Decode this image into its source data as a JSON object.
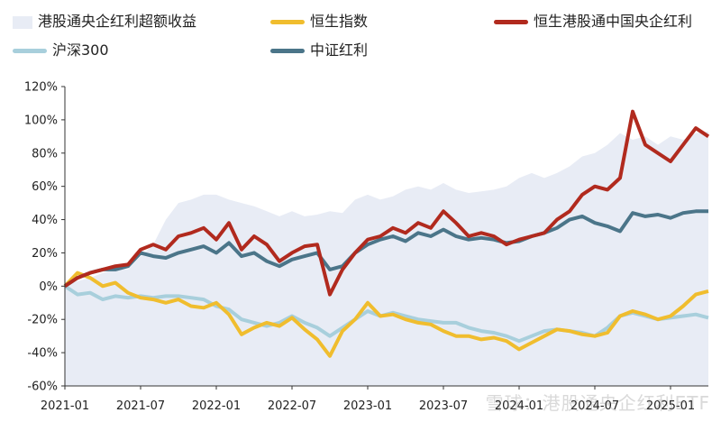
{
  "legend": [
    {
      "name": "港股通央企红利超额收益",
      "color": "#e8ecf5",
      "kind": "area"
    },
    {
      "name": "恒生指数",
      "color": "#f0bd2e",
      "kind": "line"
    },
    {
      "name": "恒生港股通中国央企红利",
      "color": "#b12a1e",
      "kind": "line"
    },
    {
      "name": "沪深300",
      "color": "#a8cfdc",
      "kind": "line"
    },
    {
      "name": "中证红利",
      "color": "#4b7589",
      "kind": "line"
    }
  ],
  "watermark": "雪球：港股通央企红利ETF",
  "chart_data": {
    "type": "line",
    "title": "",
    "xlabel": "",
    "ylabel": "",
    "x_ticks": [
      "2021-01",
      "2021-07",
      "2022-01",
      "2022-07",
      "2023-01",
      "2023-07",
      "2024-01",
      "2024-07",
      "2025-01"
    ],
    "y_ticks": [
      "120%",
      "100%",
      "80%",
      "60%",
      "40%",
      "20%",
      "0%",
      "-20%",
      "-40%",
      "-60%"
    ],
    "ylim": [
      -60,
      120
    ],
    "x_range": [
      "2021-01",
      "2025-04"
    ],
    "grid": false,
    "legend_position": "top",
    "x": [
      "2021-01",
      "2021-02",
      "2021-03",
      "2021-04",
      "2021-05",
      "2021-06",
      "2021-07",
      "2021-08",
      "2021-09",
      "2021-10",
      "2021-11",
      "2021-12",
      "2022-01",
      "2022-02",
      "2022-03",
      "2022-04",
      "2022-05",
      "2022-06",
      "2022-07",
      "2022-08",
      "2022-09",
      "2022-10",
      "2022-11",
      "2022-12",
      "2023-01",
      "2023-02",
      "2023-03",
      "2023-04",
      "2023-05",
      "2023-06",
      "2023-07",
      "2023-08",
      "2023-09",
      "2023-10",
      "2023-11",
      "2023-12",
      "2024-01",
      "2024-02",
      "2024-03",
      "2024-04",
      "2024-05",
      "2024-06",
      "2024-07",
      "2024-08",
      "2024-09",
      "2024-10",
      "2024-11",
      "2024-12",
      "2025-01",
      "2025-02",
      "2025-03",
      "2025-04"
    ],
    "series": [
      {
        "name": "港股通央企红利超额收益",
        "type": "area",
        "color": "#e8ecf5",
        "values": [
          0,
          3,
          5,
          8,
          10,
          10,
          18,
          25,
          40,
          50,
          52,
          55,
          55,
          52,
          50,
          48,
          45,
          42,
          45,
          42,
          43,
          45,
          44,
          52,
          55,
          52,
          54,
          58,
          60,
          58,
          62,
          58,
          56,
          57,
          58,
          60,
          65,
          68,
          65,
          68,
          72,
          78,
          80,
          85,
          92,
          88,
          90,
          85,
          90,
          88,
          92,
          93
        ]
      },
      {
        "name": "恒生指数",
        "color": "#f0bd2e",
        "values": [
          0,
          8,
          5,
          0,
          2,
          -4,
          -7,
          -8,
          -10,
          -8,
          -12,
          -13,
          -10,
          -17,
          -29,
          -25,
          -22,
          -24,
          -19,
          -26,
          -32,
          -42,
          -27,
          -20,
          -10,
          -18,
          -17,
          -20,
          -22,
          -23,
          -27,
          -30,
          -30,
          -32,
          -31,
          -33,
          -38,
          -34,
          -30,
          -26,
          -27,
          -29,
          -30,
          -28,
          -18,
          -15,
          -17,
          -20,
          -18,
          -12,
          -5,
          -3
        ]
      },
      {
        "name": "恒生港股通中国央企红利",
        "color": "#b12a1e",
        "values": [
          0,
          5,
          8,
          10,
          12,
          13,
          22,
          25,
          22,
          30,
          32,
          35,
          28,
          38,
          22,
          30,
          25,
          15,
          20,
          24,
          25,
          -5,
          10,
          20,
          28,
          30,
          35,
          32,
          38,
          35,
          45,
          38,
          30,
          32,
          30,
          25,
          28,
          30,
          32,
          40,
          45,
          55,
          60,
          58,
          65,
          105,
          85,
          80,
          75,
          85,
          95,
          90
        ]
      },
      {
        "name": "沪深300",
        "color": "#a8cfdc",
        "values": [
          0,
          -5,
          -4,
          -8,
          -6,
          -7,
          -6,
          -7,
          -6,
          -6,
          -7,
          -8,
          -12,
          -14,
          -20,
          -22,
          -24,
          -22,
          -18,
          -22,
          -25,
          -30,
          -25,
          -20,
          -15,
          -18,
          -16,
          -18,
          -20,
          -21,
          -22,
          -22,
          -25,
          -27,
          -28,
          -30,
          -33,
          -30,
          -27,
          -26,
          -27,
          -28,
          -30,
          -25,
          -18,
          -16,
          -18,
          -20,
          -19,
          -18,
          -17,
          -19
        ]
      },
      {
        "name": "中证红利",
        "color": "#4b7589",
        "values": [
          0,
          5,
          8,
          10,
          10,
          12,
          20,
          18,
          17,
          20,
          22,
          24,
          20,
          26,
          18,
          20,
          15,
          12,
          16,
          18,
          20,
          10,
          12,
          20,
          25,
          28,
          30,
          27,
          32,
          30,
          34,
          30,
          28,
          29,
          28,
          26,
          27,
          30,
          32,
          35,
          40,
          42,
          38,
          36,
          33,
          44,
          42,
          43,
          41,
          44,
          45,
          45
        ]
      }
    ]
  }
}
